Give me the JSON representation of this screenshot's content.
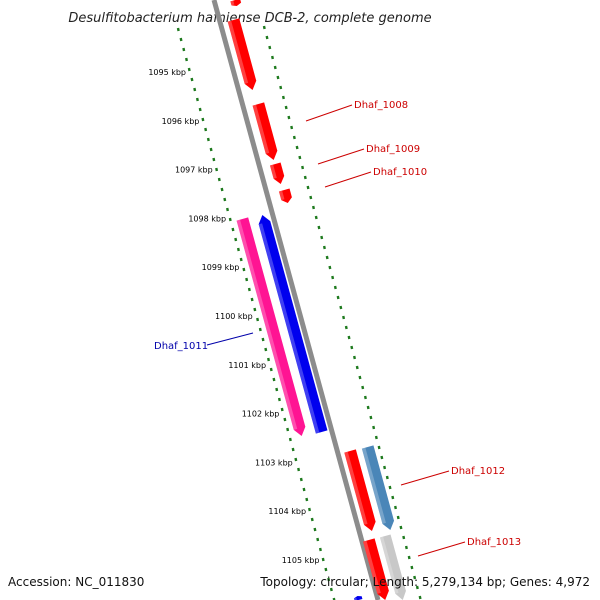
{
  "title": "Desulfitobacterium hafniense DCB-2, complete genome",
  "accession": "Accession: NC_011830",
  "summary": "Topology: circular; Length: 5,279,134 bp; Genes: 4,972",
  "colors": {
    "backbone": "#8c8c8c",
    "ruler": "#1e7a1e",
    "forward_gene": "#ff0000",
    "forward_label": "#cc0000",
    "reverse_label": "#0000aa",
    "blue_gene": "#0000ee",
    "pink_gene": "#ff1493",
    "steel_gene": "#4a86b8",
    "grey_gene": "#c8c8c8"
  },
  "ruler_ticks": [
    "1095 kbp",
    "1096 kbp",
    "1097 kbp",
    "1098 kbp",
    "1099 kbp",
    "1100 kbp",
    "1101 kbp",
    "1102 kbp",
    "1103 kbp",
    "1104 kbp",
    "1105 kbp"
  ],
  "gene_labels": [
    "Dhaf_1008",
    "Dhaf_1009",
    "Dhaf_1010",
    "Dhaf_1011",
    "Dhaf_1012",
    "Dhaf_1013"
  ]
}
